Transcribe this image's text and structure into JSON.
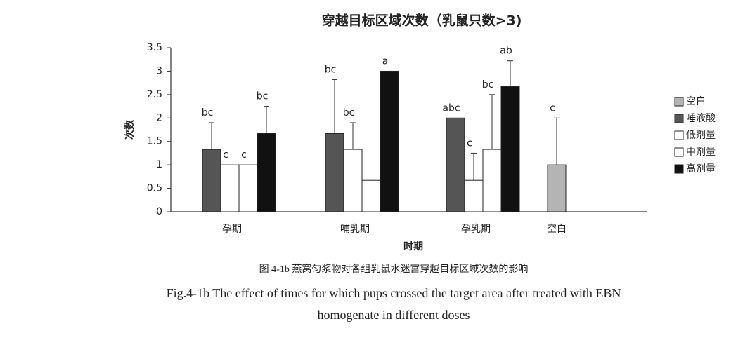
{
  "chart_data": {
    "type": "bar",
    "title": "穿越目标区域次数（乳鼠只数>3)",
    "x_label": "时期",
    "y_label": "次数",
    "categories": [
      "孕期",
      "哺乳期",
      "孕乳期",
      "空白"
    ],
    "series": [
      {
        "name": "空白",
        "color": "#b4b4b4",
        "values": [
          null,
          null,
          null,
          1.0
        ],
        "errors": [
          null,
          null,
          null,
          1.0
        ],
        "letters": [
          null,
          null,
          null,
          "c"
        ]
      },
      {
        "name": "唾液酸",
        "color": "#555555",
        "values": [
          1.33,
          1.67,
          2.0,
          null
        ],
        "errors": [
          0.57,
          1.15,
          null,
          null
        ],
        "letters": [
          "bc",
          "bc",
          "abc",
          null
        ]
      },
      {
        "name": "低剂量",
        "color": "#ffffff",
        "values": [
          1.0,
          1.33,
          0.67,
          null
        ],
        "errors": [
          null,
          0.57,
          0.58,
          null
        ],
        "letters": [
          "c",
          "bc",
          "c",
          null
        ]
      },
      {
        "name": "中剂量",
        "color": "#ffffff",
        "values": [
          1.0,
          0.67,
          1.33,
          null
        ],
        "errors": [
          null,
          null,
          1.17,
          null
        ],
        "letters": [
          "c",
          null,
          "bc",
          null
        ]
      },
      {
        "name": "高剂量",
        "color": "#111111",
        "values": [
          1.67,
          3.0,
          2.67,
          null
        ],
        "errors": [
          0.58,
          null,
          0.55,
          null
        ],
        "letters": [
          "bc",
          "a",
          "ab",
          null
        ]
      }
    ],
    "ylim": [
      0,
      3.5
    ],
    "yticks": [
      0,
      0.5,
      1,
      1.5,
      2,
      2.5,
      3,
      3.5
    ],
    "caption": [
      "图 4-1b 燕窝匀浆物对各组乳鼠水迷宫穿越目标区域次数的影响",
      "Fig.4-1b The effect of times for which pups crossed the target area after treated with EBN",
      "homogenate in different doses"
    ]
  }
}
